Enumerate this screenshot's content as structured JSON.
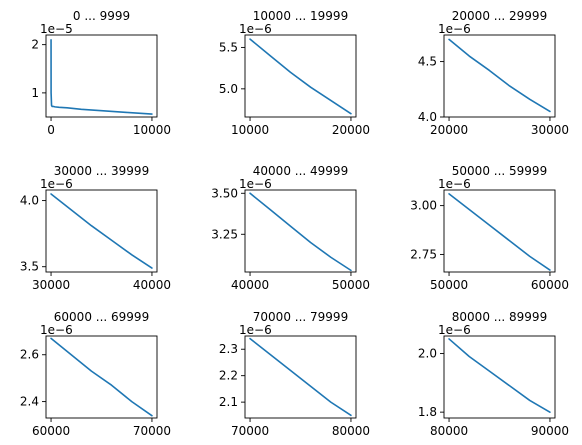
{
  "figure": {
    "line_color": "#1f77b4",
    "frame_color": "#000000",
    "background": "#ffffff"
  },
  "chart_data": [
    {
      "type": "line",
      "title": "0 ... 9999",
      "offset_text": "1e−5",
      "x": [
        0,
        5,
        50,
        100,
        200,
        400,
        800,
        1600,
        3000,
        5000,
        7500,
        9999
      ],
      "y": [
        2.1e-05,
        1e-05,
        7.4e-06,
        7.2e-06,
        7.2e-06,
        7.1e-06,
        7e-06,
        6.9e-06,
        6.6e-06,
        6.3e-06,
        5.95e-06,
        5.6e-06
      ],
      "xlim": [
        -500,
        10500
      ],
      "ylim": [
        5e-06,
        2.2e-05
      ],
      "xticks": [
        0,
        10000
      ],
      "xtick_labels": [
        "0",
        "10000"
      ],
      "yticks": [
        1e-05,
        2e-05
      ],
      "ytick_labels": [
        "1",
        "2"
      ]
    },
    {
      "type": "line",
      "title": "10000 ... 19999",
      "offset_text": "1e−6",
      "x": [
        10000,
        12000,
        14000,
        16000,
        18000,
        19999
      ],
      "y": [
        5.6e-06,
        5.4e-06,
        5.2e-06,
        5.02e-06,
        4.86e-06,
        4.7e-06
      ],
      "xlim": [
        9500,
        20500
      ],
      "ylim": [
        4.66e-06,
        5.65e-06
      ],
      "xticks": [
        10000,
        20000
      ],
      "xtick_labels": [
        "10000",
        "20000"
      ],
      "yticks": [
        5e-06,
        5.5e-06
      ],
      "ytick_labels": [
        "5.0",
        "5.5"
      ]
    },
    {
      "type": "line",
      "title": "20000 ... 29999",
      "offset_text": "1e−6",
      "x": [
        20000,
        22000,
        24000,
        26000,
        28000,
        29999
      ],
      "y": [
        4.7e-06,
        4.55e-06,
        4.42e-06,
        4.28e-06,
        4.16e-06,
        4.05e-06
      ],
      "xlim": [
        19500,
        30500
      ],
      "ylim": [
        4e-06,
        4.74e-06
      ],
      "xticks": [
        20000,
        30000
      ],
      "xtick_labels": [
        "20000",
        "30000"
      ],
      "yticks": [
        4e-06,
        4.5e-06
      ],
      "ytick_labels": [
        "4.0",
        "4.5"
      ]
    },
    {
      "type": "line",
      "title": "30000 ... 39999",
      "offset_text": "1e−6",
      "x": [
        30000,
        32000,
        34000,
        36000,
        38000,
        39999
      ],
      "y": [
        4.05e-06,
        3.93e-06,
        3.81e-06,
        3.7e-06,
        3.59e-06,
        3.49e-06
      ],
      "xlim": [
        29500,
        40500
      ],
      "ylim": [
        3.46e-06,
        4.08e-06
      ],
      "xticks": [
        30000,
        40000
      ],
      "xtick_labels": [
        "30000",
        "40000"
      ],
      "yticks": [
        3.5e-06,
        4e-06
      ],
      "ytick_labels": [
        "3.5",
        "4.0"
      ]
    },
    {
      "type": "line",
      "title": "40000 ... 49999",
      "offset_text": "1e−6",
      "x": [
        40000,
        42000,
        44000,
        46000,
        48000,
        49999
      ],
      "y": [
        3.5e-06,
        3.4e-06,
        3.3e-06,
        3.2e-06,
        3.11e-06,
        3.03e-06
      ],
      "xlim": [
        39500,
        50500
      ],
      "ylim": [
        3.02e-06,
        3.52e-06
      ],
      "xticks": [
        40000,
        50000
      ],
      "xtick_labels": [
        "40000",
        "50000"
      ],
      "yticks": [
        3.25e-06,
        3.5e-06
      ],
      "ytick_labels": [
        "3.25",
        "3.50"
      ]
    },
    {
      "type": "line",
      "title": "50000 ... 59999",
      "offset_text": "1e−6",
      "x": [
        50000,
        52000,
        54000,
        56000,
        58000,
        59999
      ],
      "y": [
        3.06e-06,
        2.98e-06,
        2.9e-06,
        2.82e-06,
        2.74e-06,
        2.67e-06
      ],
      "xlim": [
        49500,
        60500
      ],
      "ylim": [
        2.66e-06,
        3.08e-06
      ],
      "xticks": [
        50000,
        60000
      ],
      "xtick_labels": [
        "50000",
        "60000"
      ],
      "yticks": [
        2.75e-06,
        3e-06
      ],
      "ytick_labels": [
        "2.75",
        "3.00"
      ]
    },
    {
      "type": "line",
      "title": "60000 ... 69999",
      "offset_text": "1e−6",
      "x": [
        60000,
        62000,
        64000,
        66000,
        68000,
        69999
      ],
      "y": [
        2.67e-06,
        2.6e-06,
        2.53e-06,
        2.47e-06,
        2.4e-06,
        2.34e-06
      ],
      "xlim": [
        59500,
        70500
      ],
      "ylim": [
        2.33e-06,
        2.68e-06
      ],
      "xticks": [
        60000,
        70000
      ],
      "xtick_labels": [
        "60000",
        "70000"
      ],
      "yticks": [
        2.4e-06,
        2.6e-06
      ],
      "ytick_labels": [
        "2.4",
        "2.6"
      ]
    },
    {
      "type": "line",
      "title": "70000 ... 79999",
      "offset_text": "1e−6",
      "x": [
        70000,
        72000,
        74000,
        76000,
        78000,
        79999
      ],
      "y": [
        2.34e-06,
        2.28e-06,
        2.22e-06,
        2.16e-06,
        2.1e-06,
        2.05e-06
      ],
      "xlim": [
        69500,
        80500
      ],
      "ylim": [
        2.04e-06,
        2.35e-06
      ],
      "xticks": [
        70000,
        80000
      ],
      "xtick_labels": [
        "70000",
        "80000"
      ],
      "yticks": [
        2.1e-06,
        2.2e-06,
        2.3e-06
      ],
      "ytick_labels": [
        "2.1",
        "2.2",
        "2.3"
      ]
    },
    {
      "type": "line",
      "title": "80000 ... 89999",
      "offset_text": "1e−6",
      "x": [
        80000,
        82000,
        84000,
        86000,
        88000,
        89999
      ],
      "y": [
        2.05e-06,
        1.99e-06,
        1.94e-06,
        1.89e-06,
        1.84e-06,
        1.8e-06
      ],
      "xlim": [
        79500,
        90500
      ],
      "ylim": [
        1.78e-06,
        2.06e-06
      ],
      "xticks": [
        80000,
        90000
      ],
      "xtick_labels": [
        "80000",
        "90000"
      ],
      "yticks": [
        1.8e-06,
        2e-06
      ],
      "ytick_labels": [
        "1.8",
        "2.0"
      ]
    }
  ]
}
